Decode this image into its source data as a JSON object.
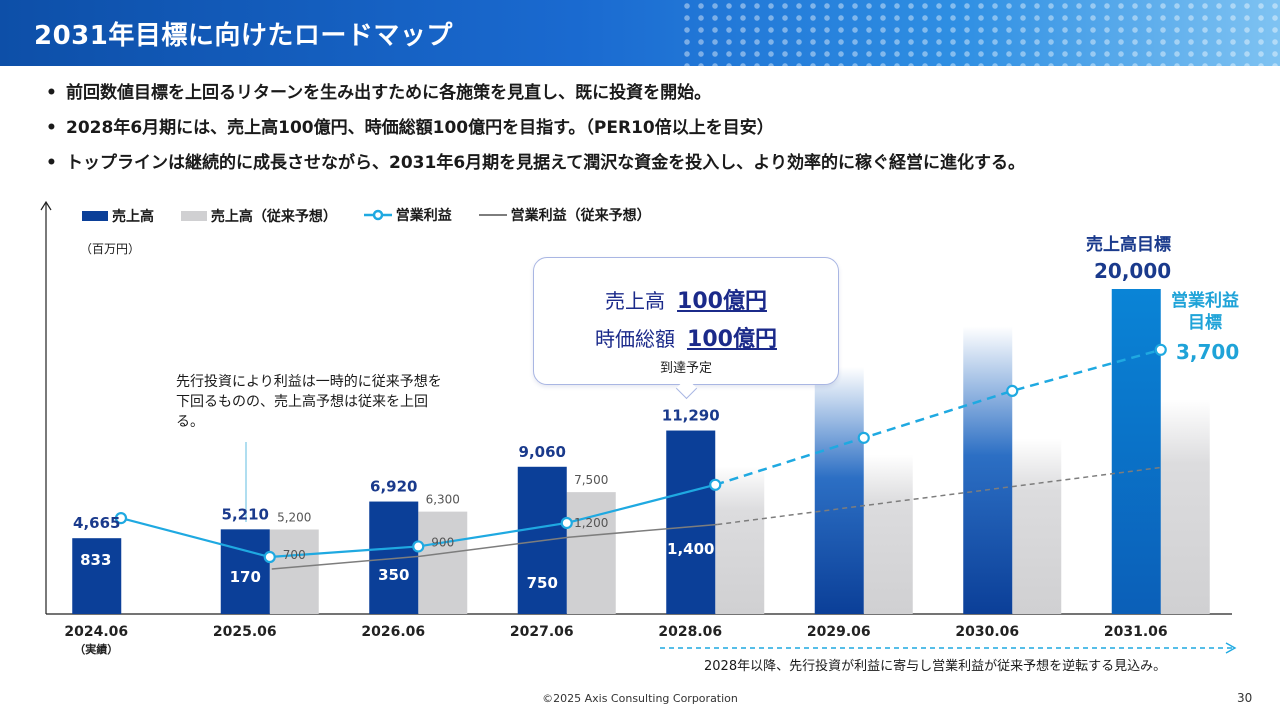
{
  "header": {
    "title": "2031年目標に向けたロードマップ"
  },
  "bullets": [
    "前回数値目標を上回るリターンを生み出すために各施策を見直し、既に投資を開始。",
    "2028年6月期には、売上高100億円、時価総額100億円を目指す。（PER10倍以上を目安）",
    "トップラインは継続的に成長させながら、2031年6月期を見据えて潤沢な資金を投入し、より効率的に稼ぐ経営に進化する。"
  ],
  "bullet_symbol": "•",
  "legend": {
    "sales": "売上高",
    "sales_prev": "売上高（従来予想）",
    "op": "営業利益",
    "op_prev": "営業利益（従来予想）"
  },
  "unit": "（百万円）",
  "callout": {
    "row1_label": "売上高",
    "row1_value": "100億円",
    "row2_label": "時価総額",
    "row2_value": "100億円",
    "note": "到達予定"
  },
  "annotation": "先行投資により利益は一時的に従来予想を下回るものの、売上高予想は従来を上回る。",
  "targets": {
    "sales_label": "売上高目標",
    "sales_value": "20,000",
    "op_label": "営業利益目標",
    "op_value": "3,700"
  },
  "footnote": "2028年以降、先行投資が利益に寄与し営業利益が従来予想を逆転する見込み。",
  "copyright": "©2025 Axis Consulting Corporation",
  "page_number": "30",
  "colors": {
    "sales": "#0b3f98",
    "sales_gradient_top": "#ffffff",
    "sales_target": "#0a7fd0",
    "sales_prev": "#d0d0d2",
    "op": "#1fa9e1",
    "op_prev": "#7d7d7d",
    "data_label": "#1a3a8c"
  },
  "chart_data": {
    "type": "bar",
    "categories": [
      "2024.06",
      "2025.06",
      "2026.06",
      "2027.06",
      "2028.06",
      "2029.06",
      "2030.06",
      "2031.06"
    ],
    "category_sublabels": [
      "（実績）",
      "",
      "",
      "",
      "",
      "",
      "",
      ""
    ],
    "ylim": [
      0,
      20000
    ],
    "grid": false,
    "legend_position": "top-left",
    "series": [
      {
        "name": "売上高",
        "kind": "bar",
        "values": [
          4665,
          5210,
          6920,
          9060,
          11290,
          15200,
          17700,
          20000
        ],
        "labels": [
          "4,665",
          "5,210",
          "6,920",
          "9,060",
          "11,290",
          "",
          "",
          ""
        ]
      },
      {
        "name": "売上高（従来予想）",
        "kind": "bar",
        "values": [
          null,
          5200,
          6300,
          7500,
          9100,
          9800,
          10800,
          13200
        ],
        "labels": [
          "",
          "5,200",
          "6,300",
          "7,500",
          "",
          "",
          "",
          ""
        ]
      },
      {
        "name": "営業利益",
        "kind": "line",
        "values": [
          833,
          170,
          350,
          750,
          1400,
          2200,
          3000,
          3700
        ],
        "labels": [
          "833",
          "170",
          "350",
          "750",
          "1,400",
          "",
          "",
          ""
        ]
      },
      {
        "name": "営業利益（従来予想）",
        "kind": "line",
        "values": [
          null,
          700,
          900,
          1200,
          1400,
          1700,
          2000,
          2300
        ],
        "labels": [
          "",
          "700",
          "900",
          "1,200",
          "",
          "",
          "",
          ""
        ]
      }
    ]
  }
}
